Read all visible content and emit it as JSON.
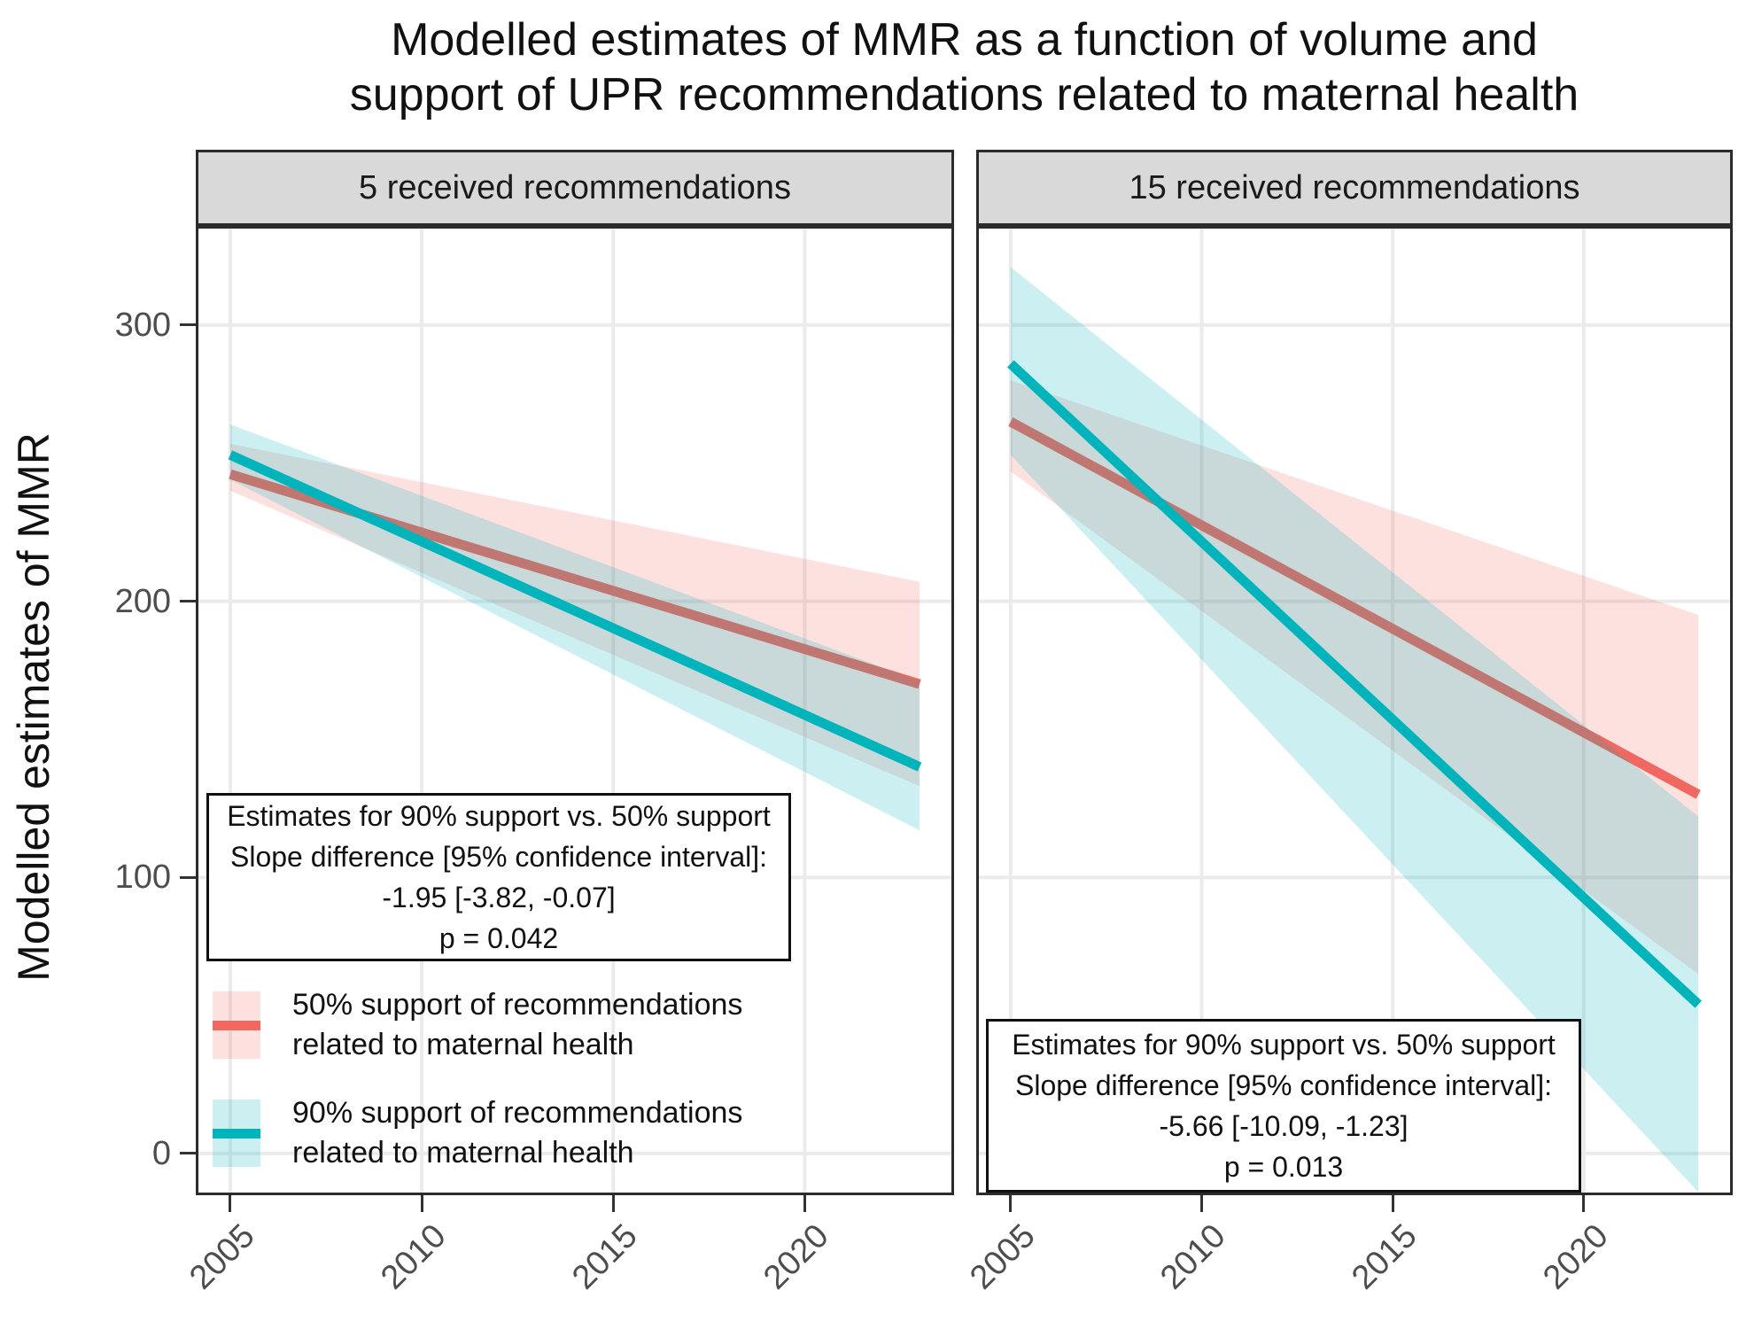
{
  "title": {
    "line1": "Modelled estimates of MMR as a function of volume and",
    "line2": "support of UPR recommendations related to maternal health"
  },
  "y_axis": {
    "title": "Modelled estimates of MMR",
    "tick_labels": [
      "0",
      "100",
      "200",
      "300"
    ],
    "tick_values": [
      0,
      100,
      200,
      300
    ]
  },
  "x_axis": {
    "tick_labels": [
      "2005",
      "2010",
      "2015",
      "2020"
    ],
    "tick_values": [
      2005,
      2010,
      2015,
      2020
    ]
  },
  "panels": [
    {
      "strip_label": "5 received recommendations",
      "annotation": {
        "lines": [
          "Estimates for 90% support vs. 50% support",
          "Slope difference [95% confidence interval]:",
          "-1.95 [-3.82, -0.07]",
          "p = 0.042"
        ]
      }
    },
    {
      "strip_label": "15 received recommendations",
      "annotation": {
        "lines": [
          "Estimates for 90% support vs. 50% support",
          "Slope difference [95% confidence interval]:",
          "-5.66 [-10.09, -1.23]",
          "p = 0.013"
        ]
      }
    }
  ],
  "legend": {
    "entries": [
      {
        "label": "50% support of recommendations related to maternal health",
        "line1": "50% support of recommendations",
        "line2": "related to maternal health",
        "color": "#F0685F"
      },
      {
        "label": "90% support of recommendations related to maternal health",
        "line1": "90% support of recommendations",
        "line2": "related to maternal health",
        "color": "#00B4BC"
      }
    ]
  },
  "colors": {
    "red_line": "#F0685F",
    "teal_line": "#00B4BC",
    "ribbon_alpha": 0.2,
    "gridline": "#EBEBEB",
    "strip_bg": "#D9D9D9",
    "tick_label": "#4D4D4D",
    "panel_border": "#2B2B2B"
  },
  "chart_data": [
    {
      "type": "line",
      "panel": "5 received recommendations",
      "title": "Modelled estimates of MMR as a function of volume and support of UPR recommendations related to maternal health",
      "xlabel": "",
      "ylabel": "Modelled estimates of MMR",
      "xlim": [
        2004.1,
        2023.9
      ],
      "ylim": [
        -15,
        336
      ],
      "x_ticks": [
        2005,
        2010,
        2015,
        2020
      ],
      "y_ticks": [
        0,
        100,
        200,
        300
      ],
      "grid": true,
      "legend_position": "inside-bottom-left",
      "x": [
        2005,
        2023
      ],
      "series": [
        {
          "name": "50% support of recommendations related to maternal health",
          "values": [
            246,
            170
          ],
          "ci_lower": [
            240,
            133
          ],
          "ci_upper": [
            257,
            207
          ],
          "color": "#F0685F"
        },
        {
          "name": "90% support of recommendations related to maternal health",
          "values": [
            253,
            140
          ],
          "ci_lower": [
            244,
            117
          ],
          "ci_upper": [
            264,
            171
          ],
          "color": "#00B4BC"
        }
      ],
      "annotation": {
        "slope_difference": -1.95,
        "ci_95": [
          -3.82,
          -0.07
        ],
        "p_value": 0.042
      }
    },
    {
      "type": "line",
      "panel": "15 received recommendations",
      "title": "Modelled estimates of MMR as a function of volume and support of UPR recommendations related to maternal health",
      "xlabel": "",
      "ylabel": "Modelled estimates of MMR",
      "xlim": [
        2004.1,
        2023.9
      ],
      "ylim": [
        -15,
        336
      ],
      "x_ticks": [
        2005,
        2010,
        2015,
        2020
      ],
      "y_ticks": [
        0,
        100,
        200,
        300
      ],
      "grid": true,
      "x": [
        2005,
        2023
      ],
      "series": [
        {
          "name": "50% support of recommendations related to maternal health",
          "values": [
            265,
            130
          ],
          "ci_lower": [
            247,
            65
          ],
          "ci_upper": [
            280,
            195
          ],
          "color": "#F0685F"
        },
        {
          "name": "90% support of recommendations related to maternal health",
          "values": [
            286,
            54
          ],
          "ci_lower": [
            253,
            -14
          ],
          "ci_upper": [
            321,
            122
          ],
          "color": "#00B4BC"
        }
      ],
      "annotation": {
        "slope_difference": -5.66,
        "ci_95": [
          -10.09,
          -1.23
        ],
        "p_value": 0.013
      }
    }
  ]
}
